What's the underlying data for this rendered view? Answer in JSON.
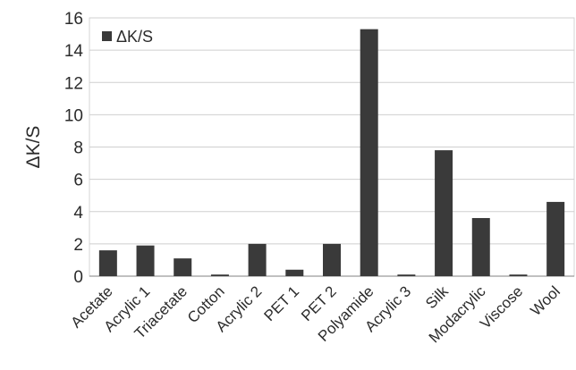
{
  "chart_data": {
    "type": "bar",
    "categories": [
      "Acetate",
      "Acrylic 1",
      "Triacetate",
      "Cotton",
      "Acrylic 2",
      "PET 1",
      "PET 2",
      "Polyamide",
      "Acrylic 3",
      "Silk",
      "Modacrylic",
      "Viscose",
      "Wool"
    ],
    "series": [
      {
        "name": "ΔK/S",
        "values": [
          1.6,
          1.9,
          1.1,
          0.1,
          2.0,
          0.4,
          2.0,
          15.3,
          0.1,
          7.8,
          3.6,
          0.1,
          4.6
        ]
      }
    ],
    "ylabel": "ΔK/S",
    "ylim": [
      0,
      16
    ],
    "yticks": [
      0,
      2,
      4,
      6,
      8,
      10,
      12,
      14,
      16
    ],
    "grid": true,
    "legend_position": "top-left",
    "bar_color": "#3a3a3a"
  }
}
